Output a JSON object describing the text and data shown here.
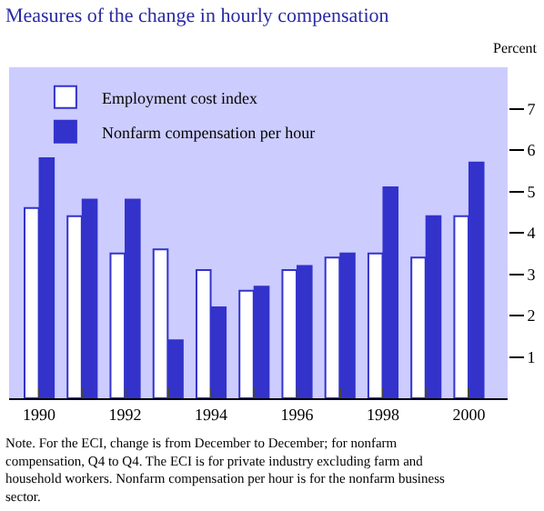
{
  "chart_data": {
    "type": "bar",
    "title": "Measures of the change in hourly compensation",
    "ylabel": "Percent",
    "x": [
      1990,
      1991,
      1992,
      1993,
      1994,
      1995,
      1996,
      1997,
      1998,
      1999,
      2000
    ],
    "series": [
      {
        "name": "Employment cost index",
        "color": "#ffffff",
        "values": [
          4.6,
          4.4,
          3.5,
          3.6,
          3.1,
          2.6,
          3.1,
          3.4,
          3.5,
          3.4,
          4.4
        ]
      },
      {
        "name": "Nonfarm compensation per hour",
        "color": "#3333cc",
        "values": [
          5.8,
          4.8,
          4.8,
          1.4,
          2.2,
          2.7,
          3.2,
          3.5,
          5.1,
          4.4,
          5.7
        ]
      }
    ],
    "xlim": [
      1989.3,
      2000.9
    ],
    "xticks": [
      1990,
      {
        "value": 1991,
        "label": null
      },
      1992,
      {
        "value": 1993,
        "label": null
      },
      1994,
      {
        "value": 1995,
        "label": null
      },
      1996,
      {
        "value": 1997,
        "label": null
      },
      1998,
      {
        "value": 1999,
        "label": null
      },
      2000
    ],
    "ylim": [
      0,
      8
    ],
    "yticks": [
      {
        "value": 1,
        "label": "1"
      },
      2,
      3,
      4,
      5,
      6,
      7
    ],
    "grid": false,
    "legend": "top left",
    "annotations": [
      "Note. For the ECI, change is from December to December; for nonfarm compensation, Q4 to Q4. The ECI is for private industry excluding farm and household workers. Nonfarm compensation per hour is for the nonfarm business sector."
    ]
  }
}
